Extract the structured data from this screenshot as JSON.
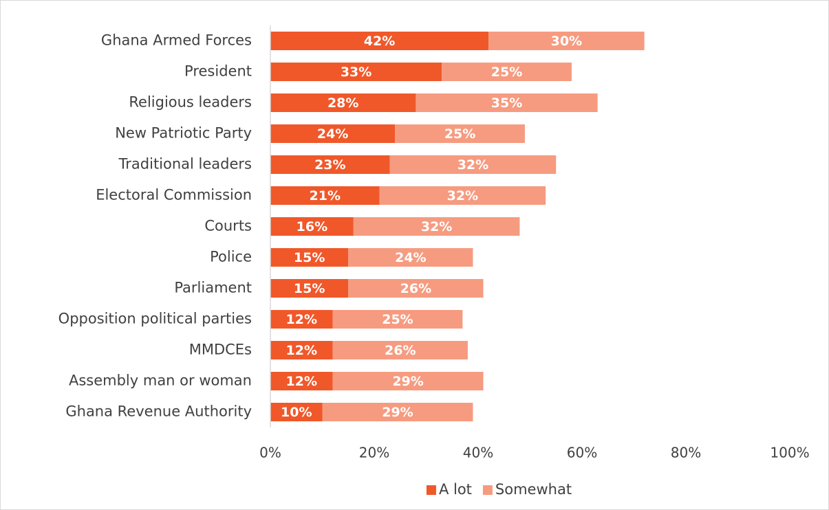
{
  "chart_data": {
    "type": "stacked-bar-horizontal",
    "categories": [
      "Ghana Armed Forces",
      "President",
      "Religious leaders",
      "New Patriotic Party",
      "Traditional leaders",
      "Electoral Commission",
      "Courts",
      "Police",
      "Parliament",
      "Opposition political parties",
      "MMDCEs",
      "Assembly man or woman",
      "Ghana Revenue Authority"
    ],
    "series": [
      {
        "name": "A lot",
        "color": "#f0582a",
        "values": [
          42,
          33,
          28,
          24,
          23,
          21,
          16,
          15,
          15,
          12,
          12,
          12,
          10
        ],
        "value_labels": [
          "42%",
          "33%",
          "28%",
          "24%",
          "23%",
          "21%",
          "16%",
          "15%",
          "15%",
          "12%",
          "12%",
          "12%",
          "10%"
        ]
      },
      {
        "name": "Somewhat",
        "color": "#f69b80",
        "values": [
          30,
          25,
          35,
          25,
          32,
          32,
          32,
          24,
          26,
          25,
          26,
          29,
          29
        ],
        "value_labels": [
          "30%",
          "25%",
          "35%",
          "25%",
          "32%",
          "32%",
          "32%",
          "24%",
          "26%",
          "25%",
          "26%",
          "29%",
          "29%"
        ]
      }
    ],
    "xlim": [
      0,
      100
    ],
    "xticks": [
      {
        "value": 0,
        "label": "0%"
      },
      {
        "value": 20,
        "label": "20%"
      },
      {
        "value": 40,
        "label": "40%"
      },
      {
        "value": 60,
        "label": "60%"
      },
      {
        "value": 80,
        "label": "80%"
      },
      {
        "value": 100,
        "label": "100%"
      }
    ],
    "legend": "bottom"
  }
}
